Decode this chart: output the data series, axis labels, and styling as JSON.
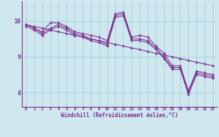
{
  "background_color": "#cfe8ef",
  "line_color": "#7b2d8b",
  "grid_color": "#aad4dd",
  "marker": "+",
  "xlabel": "Windchill (Refroidissement éolien,°C)",
  "xlim": [
    -0.5,
    23.5
  ],
  "ylim": [
    7.6,
    10.55
  ],
  "yticks": [
    8,
    9,
    10
  ],
  "xticks": [
    0,
    1,
    2,
    3,
    4,
    5,
    6,
    7,
    8,
    9,
    10,
    11,
    12,
    13,
    14,
    15,
    16,
    17,
    18,
    19,
    20,
    21,
    22,
    23
  ],
  "series": [
    [
      9.9,
      9.8,
      9.7,
      9.95,
      9.95,
      9.85,
      9.7,
      9.65,
      9.6,
      9.55,
      9.45,
      10.2,
      10.25,
      9.55,
      9.6,
      9.55,
      9.3,
      9.1,
      8.75,
      8.75,
      8.05,
      8.6,
      8.55,
      8.5
    ],
    [
      9.9,
      9.8,
      9.65,
      9.8,
      9.9,
      9.8,
      9.65,
      9.6,
      9.5,
      9.45,
      9.35,
      10.15,
      10.2,
      9.5,
      9.5,
      9.45,
      9.25,
      9.0,
      8.7,
      8.7,
      8.0,
      8.55,
      8.5,
      8.45
    ],
    [
      9.85,
      9.75,
      9.6,
      9.75,
      9.85,
      9.75,
      9.6,
      9.55,
      9.45,
      9.4,
      9.3,
      10.1,
      10.15,
      9.45,
      9.45,
      9.4,
      9.2,
      8.95,
      8.65,
      8.65,
      7.95,
      8.5,
      8.45,
      8.4
    ],
    [
      9.9,
      9.85,
      9.8,
      9.75,
      9.7,
      9.65,
      9.6,
      9.55,
      9.5,
      9.45,
      9.4,
      9.35,
      9.3,
      9.25,
      9.2,
      9.15,
      9.1,
      9.05,
      9.0,
      8.95,
      8.9,
      8.85,
      8.8,
      8.75
    ]
  ],
  "figsize": [
    3.2,
    2.0
  ],
  "dpi": 100
}
